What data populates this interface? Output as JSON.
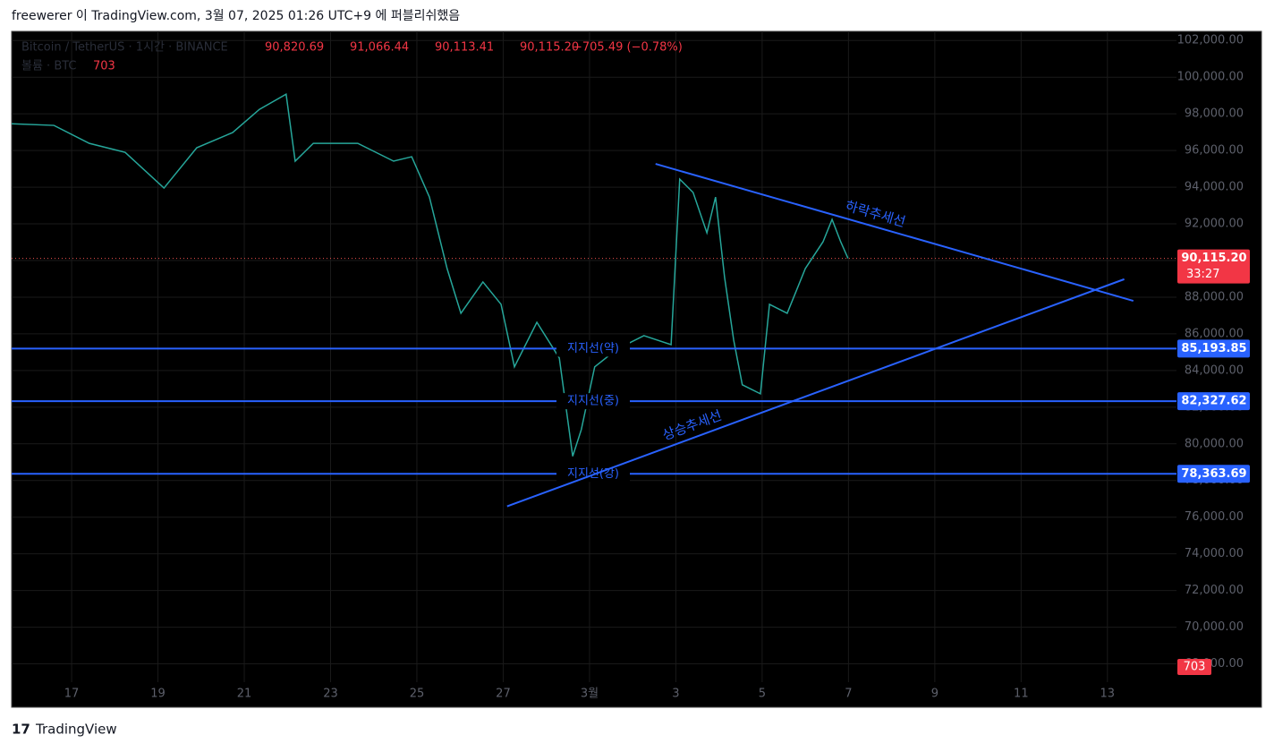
{
  "header": "freewerer 이 TradingView.com, 3월 07, 2025 01:26 UTC+9 에 퍼블리쉬했음",
  "footer": "TradingView",
  "chart_data": {
    "type": "line",
    "title": "Bitcoin / TetherUS · 1시간 · BINANCE",
    "ohlc": {
      "values": [
        90820.69,
        91066.44,
        90113.41,
        90115.2
      ],
      "value_labels": [
        "90,820.69",
        "91,066.44",
        "90,113.41",
        "90,115.20"
      ]
    },
    "change_label": "−705.49 (−0.78%)",
    "volume_label": "볼륨 · BTC",
    "volume": 703,
    "color": "#26a69a",
    "x": [
      -1.39,
      -0.41,
      0.41,
      1.24,
      2.14,
      2.9,
      3.73,
      4.35,
      4.97,
      5.18,
      5.6,
      6.63,
      7.46,
      7.88,
      8.29,
      8.7,
      9.02,
      9.53,
      9.95,
      10.26,
      10.78,
      11.3,
      11.61,
      11.81,
      12.12,
      12.64,
      13.26,
      13.89,
      14.09,
      14.4,
      14.72,
      14.92,
      15.13,
      15.34,
      15.54,
      15.96,
      16.17,
      16.58,
      17.0,
      17.41,
      17.62,
      17.82,
      17.99
    ],
    "values": [
      97460,
      97370,
      96390,
      95900,
      93950,
      96150,
      96980,
      98240,
      99070,
      95420,
      96390,
      96390,
      95420,
      95660,
      93460,
      89560,
      87120,
      88830,
      87610,
      84200,
      86630,
      84680,
      79320,
      80780,
      84200,
      85170,
      85900,
      85410,
      94440,
      93710,
      91510,
      93460,
      89070,
      85660,
      83220,
      82730,
      87610,
      87120,
      89560,
      91020,
      92240,
      91020,
      90115.2
    ],
    "last_price": 90115.2,
    "last_price_label": "90,115.20",
    "countdown": "33:27",
    "xlim": [
      -1.39,
      25.6
    ],
    "xticks": [
      {
        "value": 0,
        "label": "17"
      },
      {
        "value": 2,
        "label": "19"
      },
      {
        "value": 4,
        "label": "21"
      },
      {
        "value": 6,
        "label": "23"
      },
      {
        "value": 8,
        "label": "25"
      },
      {
        "value": 10,
        "label": "27"
      },
      {
        "value": 12,
        "label": "3월"
      },
      {
        "value": 14,
        "label": "3"
      },
      {
        "value": 16,
        "label": "5"
      },
      {
        "value": 18,
        "label": "7"
      },
      {
        "value": 20,
        "label": "9"
      },
      {
        "value": 22,
        "label": "11"
      },
      {
        "value": 24,
        "label": "13"
      }
    ],
    "ylim": [
      67000,
      102500
    ],
    "yticks": [
      {
        "value": 68000,
        "label": "68,000.00"
      },
      {
        "value": 70000,
        "label": "70,000.00"
      },
      {
        "value": 72000,
        "label": "72,000.00"
      },
      {
        "value": 74000,
        "label": "74,000.00"
      },
      {
        "value": 76000,
        "label": "76,000.00"
      },
      {
        "value": 78000,
        "label": "78,000.00"
      },
      {
        "value": 80000,
        "label": "80,000.00"
      },
      {
        "value": 82000,
        "label": "82,000.00"
      },
      {
        "value": 84000,
        "label": "84,000.00"
      },
      {
        "value": 86000,
        "label": "86,000.00"
      },
      {
        "value": 88000,
        "label": "88,000.00"
      },
      {
        "value": 90000,
        "label": "90,000.00"
      },
      {
        "value": 92000,
        "label": "92,000.00"
      },
      {
        "value": 94000,
        "label": "94,000.00"
      },
      {
        "value": 96000,
        "label": "96,000.00"
      },
      {
        "value": 98000,
        "label": "98,000.00"
      },
      {
        "value": 100000,
        "label": "100,000.00"
      },
      {
        "value": 102000,
        "label": "102,000.00"
      }
    ],
    "support_lines": [
      {
        "label": "지지선(약)",
        "value": 85193.85,
        "value_label": "85,193.85"
      },
      {
        "label": "지지선(중)",
        "value": 82327.62,
        "value_label": "82,327.62"
      },
      {
        "label": "지지선(강)",
        "value": 78363.69,
        "value_label": "78,363.69"
      }
    ],
    "trend_lines": [
      {
        "label": "하락추세선",
        "x": [
          13.53,
          24.6
        ],
        "values": [
          95270,
          87800
        ]
      },
      {
        "label": "상승추세선",
        "x": [
          10.09,
          24.39
        ],
        "values": [
          76590,
          88980
        ]
      }
    ]
  }
}
